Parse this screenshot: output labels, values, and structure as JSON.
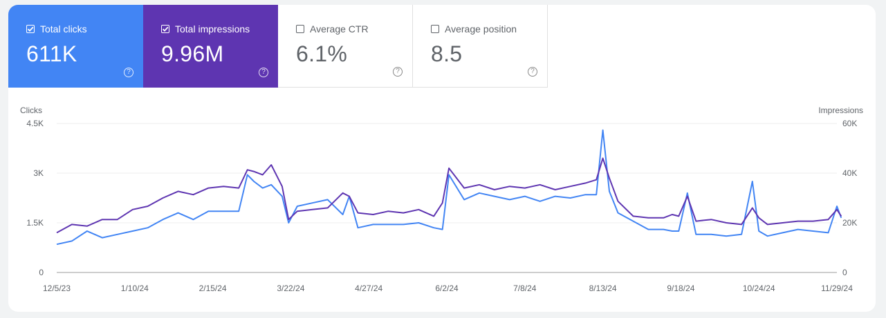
{
  "metrics": [
    {
      "label": "Total clicks",
      "value": "611K",
      "checked": true,
      "color": "#4285f4"
    },
    {
      "label": "Total impressions",
      "value": "9.96M",
      "checked": true,
      "color": "#5e35b1"
    },
    {
      "label": "Average CTR",
      "value": "6.1%",
      "checked": false
    },
    {
      "label": "Average position",
      "value": "8.5",
      "checked": false
    }
  ],
  "help_icon": "?",
  "chart_data": {
    "type": "line",
    "left_axis_label": "Clicks",
    "right_axis_label": "Impressions",
    "left_ticks": [
      "4.5K",
      "3K",
      "1.5K",
      "0"
    ],
    "right_ticks": [
      "60K",
      "40K",
      "20K",
      "0"
    ],
    "ylim_left": [
      0,
      4500
    ],
    "ylim_right": [
      0,
      60000
    ],
    "x_tick_labels": [
      "12/5/23",
      "1/10/24",
      "2/15/24",
      "3/22/24",
      "4/27/24",
      "6/2/24",
      "7/8/24",
      "8/13/24",
      "9/18/24",
      "10/24/24",
      "11/29/24"
    ],
    "x_start": "2023-12-05",
    "grid": true,
    "series": [
      {
        "name": "Clicks",
        "axis": "left",
        "color": "#4285f4",
        "x": [
          "2023-12-05",
          "2023-12-12",
          "2023-12-19",
          "2023-12-26",
          "2024-01-02",
          "2024-01-09",
          "2024-01-16",
          "2024-01-23",
          "2024-01-30",
          "2024-02-06",
          "2024-02-13",
          "2024-02-20",
          "2024-02-27",
          "2024-03-02",
          "2024-03-05",
          "2024-03-09",
          "2024-03-13",
          "2024-03-18",
          "2024-03-21",
          "2024-03-25",
          "2024-04-01",
          "2024-04-08",
          "2024-04-15",
          "2024-04-18",
          "2024-04-22",
          "2024-04-29",
          "2024-05-06",
          "2024-05-13",
          "2024-05-20",
          "2024-05-27",
          "2024-05-31",
          "2024-06-03",
          "2024-06-10",
          "2024-06-17",
          "2024-06-24",
          "2024-07-01",
          "2024-07-08",
          "2024-07-15",
          "2024-07-22",
          "2024-07-29",
          "2024-08-05",
          "2024-08-10",
          "2024-08-13",
          "2024-08-16",
          "2024-08-20",
          "2024-08-27",
          "2024-09-03",
          "2024-09-10",
          "2024-09-14",
          "2024-09-17",
          "2024-09-21",
          "2024-09-25",
          "2024-10-02",
          "2024-10-09",
          "2024-10-16",
          "2024-10-21",
          "2024-10-24",
          "2024-10-28",
          "2024-11-04",
          "2024-11-11",
          "2024-11-18",
          "2024-11-25",
          "2024-11-29",
          "2024-12-01"
        ],
        "values": [
          850,
          950,
          1250,
          1050,
          1150,
          1250,
          1350,
          1600,
          1800,
          1600,
          1850,
          1850,
          1850,
          2950,
          2750,
          2550,
          2650,
          2300,
          1500,
          2000,
          2100,
          2200,
          1750,
          2300,
          1350,
          1450,
          1450,
          1450,
          1500,
          1350,
          1300,
          2950,
          2200,
          2400,
          2300,
          2200,
          2300,
          2150,
          2300,
          2250,
          2350,
          2350,
          4300,
          2450,
          1800,
          1550,
          1300,
          1300,
          1250,
          1250,
          2400,
          1150,
          1150,
          1100,
          1150,
          2750,
          1250,
          1100,
          1200,
          1300,
          1250,
          1200,
          2000,
          1650
        ]
      },
      {
        "name": "Impressions",
        "axis": "left",
        "color": "#5e35b1",
        "x": [
          "2023-12-05",
          "2023-12-12",
          "2023-12-19",
          "2023-12-26",
          "2024-01-02",
          "2024-01-09",
          "2024-01-16",
          "2024-01-23",
          "2024-01-30",
          "2024-02-06",
          "2024-02-13",
          "2024-02-20",
          "2024-02-27",
          "2024-03-02",
          "2024-03-05",
          "2024-03-09",
          "2024-03-13",
          "2024-03-18",
          "2024-03-21",
          "2024-03-25",
          "2024-04-01",
          "2024-04-08",
          "2024-04-15",
          "2024-04-18",
          "2024-04-22",
          "2024-04-29",
          "2024-05-06",
          "2024-05-13",
          "2024-05-20",
          "2024-05-27",
          "2024-05-31",
          "2024-06-03",
          "2024-06-10",
          "2024-06-17",
          "2024-06-24",
          "2024-07-01",
          "2024-07-08",
          "2024-07-15",
          "2024-07-22",
          "2024-07-29",
          "2024-08-05",
          "2024-08-10",
          "2024-08-13",
          "2024-08-16",
          "2024-08-20",
          "2024-08-27",
          "2024-09-03",
          "2024-09-10",
          "2024-09-14",
          "2024-09-17",
          "2024-09-21",
          "2024-09-25",
          "2024-10-02",
          "2024-10-09",
          "2024-10-16",
          "2024-10-21",
          "2024-10-24",
          "2024-10-28",
          "2024-11-04",
          "2024-11-11",
          "2024-11-18",
          "2024-11-25",
          "2024-11-29",
          "2024-12-01"
        ],
        "values": [
          1200,
          1450,
          1400,
          1600,
          1600,
          1900,
          2000,
          2250,
          2450,
          2350,
          2550,
          2600,
          2550,
          3100,
          3050,
          2950,
          3250,
          2600,
          1600,
          1850,
          1900,
          1950,
          2400,
          2300,
          1800,
          1750,
          1850,
          1800,
          1900,
          1700,
          2100,
          3150,
          2550,
          2650,
          2500,
          2600,
          2550,
          2650,
          2500,
          2600,
          2700,
          2800,
          3450,
          2850,
          2150,
          1700,
          1650,
          1650,
          1750,
          1700,
          2300,
          1550,
          1600,
          1500,
          1450,
          1950,
          1650,
          1450,
          1500,
          1550,
          1550,
          1600,
          1900,
          1700
        ]
      }
    ]
  }
}
